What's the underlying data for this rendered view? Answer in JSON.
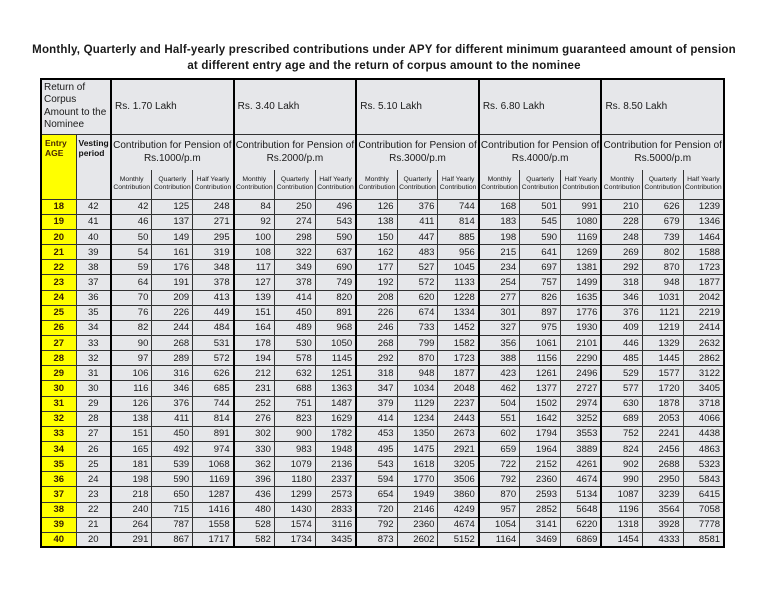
{
  "title": {
    "line1": "Monthly, Quarterly and Half-yearly prescribed contributions under APY for different minimum guaranteed amount of pension",
    "line2": "at different entry age and the return of corpus amount to the nominee"
  },
  "table": {
    "corpus_header": "Return of Corpus Amount to the Nominee",
    "corpus_amounts": [
      "Rs. 1.70 Lakh",
      "Rs. 3.40 Lakh",
      "Rs. 5.10 Lakh",
      "Rs. 6.80 Lakh",
      "Rs. 8.50 Lakh"
    ],
    "entry_age_header": "Entry AGE",
    "vesting_period_header": "Vesting period",
    "group_headers": [
      "Contribution for Pension of Rs.1000/p.m",
      "Contribution for Pension of Rs.2000/p.m",
      "Contribution for Pension of Rs.3000/p.m",
      "Contribution for Pension of Rs.4000/p.m",
      "Contribution for Pension of Rs.5000/p.m"
    ],
    "sub_headers": [
      "Monthly Contribution",
      "Quarterly Contribution",
      "Half Yearly Contribution"
    ],
    "rows": [
      {
        "age": 18,
        "vesting": 42,
        "values": [
          42,
          125,
          248,
          84,
          250,
          496,
          126,
          376,
          744,
          168,
          501,
          991,
          210,
          626,
          1239
        ]
      },
      {
        "age": 19,
        "vesting": 41,
        "values": [
          46,
          137,
          271,
          92,
          274,
          543,
          138,
          411,
          814,
          183,
          545,
          1080,
          228,
          679,
          1346
        ]
      },
      {
        "age": 20,
        "vesting": 40,
        "values": [
          50,
          149,
          295,
          100,
          298,
          590,
          150,
          447,
          885,
          198,
          590,
          1169,
          248,
          739,
          1464
        ]
      },
      {
        "age": 21,
        "vesting": 39,
        "values": [
          54,
          161,
          319,
          108,
          322,
          637,
          162,
          483,
          956,
          215,
          641,
          1269,
          269,
          802,
          1588
        ]
      },
      {
        "age": 22,
        "vesting": 38,
        "values": [
          59,
          176,
          348,
          117,
          349,
          690,
          177,
          527,
          1045,
          234,
          697,
          1381,
          292,
          870,
          1723
        ]
      },
      {
        "age": 23,
        "vesting": 37,
        "values": [
          64,
          191,
          378,
          127,
          378,
          749,
          192,
          572,
          1133,
          254,
          757,
          1499,
          318,
          948,
          1877
        ]
      },
      {
        "age": 24,
        "vesting": 36,
        "values": [
          70,
          209,
          413,
          139,
          414,
          820,
          208,
          620,
          1228,
          277,
          826,
          1635,
          346,
          1031,
          2042
        ]
      },
      {
        "age": 25,
        "vesting": 35,
        "values": [
          76,
          226,
          449,
          151,
          450,
          891,
          226,
          674,
          1334,
          301,
          897,
          1776,
          376,
          1121,
          2219
        ]
      },
      {
        "age": 26,
        "vesting": 34,
        "values": [
          82,
          244,
          484,
          164,
          489,
          968,
          246,
          733,
          1452,
          327,
          975,
          1930,
          409,
          1219,
          2414
        ]
      },
      {
        "age": 27,
        "vesting": 33,
        "values": [
          90,
          268,
          531,
          178,
          530,
          1050,
          268,
          799,
          1582,
          356,
          1061,
          2101,
          446,
          1329,
          2632
        ]
      },
      {
        "age": 28,
        "vesting": 32,
        "values": [
          97,
          289,
          572,
          194,
          578,
          1145,
          292,
          870,
          1723,
          388,
          1156,
          2290,
          485,
          1445,
          2862
        ]
      },
      {
        "age": 29,
        "vesting": 31,
        "values": [
          106,
          316,
          626,
          212,
          632,
          1251,
          318,
          948,
          1877,
          423,
          1261,
          2496,
          529,
          1577,
          3122
        ]
      },
      {
        "age": 30,
        "vesting": 30,
        "values": [
          116,
          346,
          685,
          231,
          688,
          1363,
          347,
          1034,
          2048,
          462,
          1377,
          2727,
          577,
          1720,
          3405
        ]
      },
      {
        "age": 31,
        "vesting": 29,
        "values": [
          126,
          376,
          744,
          252,
          751,
          1487,
          379,
          1129,
          2237,
          504,
          1502,
          2974,
          630,
          1878,
          3718
        ]
      },
      {
        "age": 32,
        "vesting": 28,
        "values": [
          138,
          411,
          814,
          276,
          823,
          1629,
          414,
          1234,
          2443,
          551,
          1642,
          3252,
          689,
          2053,
          4066
        ]
      },
      {
        "age": 33,
        "vesting": 27,
        "values": [
          151,
          450,
          891,
          302,
          900,
          1782,
          453,
          1350,
          2673,
          602,
          1794,
          3553,
          752,
          2241,
          4438
        ]
      },
      {
        "age": 34,
        "vesting": 26,
        "values": [
          165,
          492,
          974,
          330,
          983,
          1948,
          495,
          1475,
          2921,
          659,
          1964,
          3889,
          824,
          2456,
          4863
        ]
      },
      {
        "age": 35,
        "vesting": 25,
        "values": [
          181,
          539,
          1068,
          362,
          1079,
          2136,
          543,
          1618,
          3205,
          722,
          2152,
          4261,
          902,
          2688,
          5323
        ]
      },
      {
        "age": 36,
        "vesting": 24,
        "values": [
          198,
          590,
          1169,
          396,
          1180,
          2337,
          594,
          1770,
          3506,
          792,
          2360,
          4674,
          990,
          2950,
          5843
        ]
      },
      {
        "age": 37,
        "vesting": 23,
        "values": [
          218,
          650,
          1287,
          436,
          1299,
          2573,
          654,
          1949,
          3860,
          870,
          2593,
          5134,
          1087,
          3239,
          6415
        ]
      },
      {
        "age": 38,
        "vesting": 22,
        "values": [
          240,
          715,
          1416,
          480,
          1430,
          2833,
          720,
          2146,
          4249,
          957,
          2852,
          5648,
          1196,
          3564,
          7058
        ]
      },
      {
        "age": 39,
        "vesting": 21,
        "values": [
          264,
          787,
          1558,
          528,
          1574,
          3116,
          792,
          2360,
          4674,
          1054,
          3141,
          6220,
          1318,
          3928,
          7778
        ]
      },
      {
        "age": 40,
        "vesting": 20,
        "values": [
          291,
          867,
          1717,
          582,
          1734,
          3435,
          873,
          2602,
          5152,
          1164,
          3469,
          6869,
          1454,
          4333,
          8581
        ]
      }
    ]
  }
}
